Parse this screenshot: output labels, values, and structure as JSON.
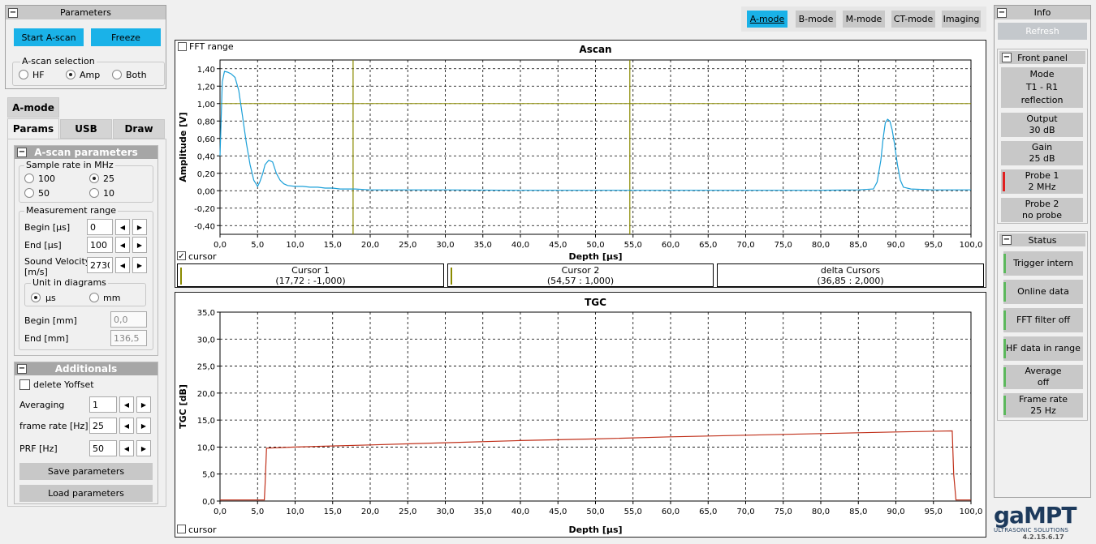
{
  "parameters": {
    "title": "Parameters",
    "start_label": "Start A-scan",
    "freeze_label": "Freeze",
    "selection_label": "A-scan selection",
    "opt_hf": "HF",
    "opt_amp": "Amp",
    "opt_both": "Both",
    "selected": "Amp"
  },
  "amode_tab": "A-mode",
  "tabs": [
    "Params",
    "USB",
    "Draw"
  ],
  "ascan_params": {
    "title": "A-scan parameters",
    "sample_rate_label": "Sample rate  in MHz",
    "rates": [
      "100",
      "25",
      "50",
      "10"
    ],
    "selected_rate": "25",
    "range_label": "Measurement range",
    "begin_label": "Begin [µs]",
    "begin_value": "0",
    "end_label": "End [µs]",
    "end_value": "100",
    "sv_label1": "Sound Velocity",
    "sv_label2": "[m/s]",
    "sv_value": "2730",
    "unit_label": "Unit in diagrams",
    "unit_us": "µs",
    "unit_mm": "mm",
    "selected_unit": "µs",
    "begin_mm_label": "Begin [mm]",
    "begin_mm_value": "0,0",
    "end_mm_label": "End [mm]",
    "end_mm_value": "136,5"
  },
  "additionals": {
    "title": "Additionals",
    "yoffset_label": "delete Yoffset",
    "averaging_label": "Averaging",
    "averaging_value": "1",
    "frame_rate_label": "frame rate [Hz]",
    "frame_rate_value": "25",
    "prf_label": "PRF [Hz]",
    "prf_value": "50",
    "save_label": "Save parameters",
    "load_label": "Load parameters"
  },
  "modes": [
    {
      "label": "A-mode",
      "active": true
    },
    {
      "label": "B-mode",
      "active": false
    },
    {
      "label": "M-mode",
      "active": false
    },
    {
      "label": "CT-mode",
      "active": false
    },
    {
      "label": "Imaging",
      "active": false
    }
  ],
  "ascan_chart": {
    "fft_label": "FFT range",
    "cursor_label": "cursor"
  },
  "cursors": {
    "c1_title": "Cursor 1",
    "c1_value": "(17,72 : -1,000)",
    "c2_title": "Cursor 2",
    "c2_value": "(54,57 : 1,000)",
    "delta_title": "delta Cursors",
    "delta_value": "(36,85 : 2,000)"
  },
  "tgc_chart": {
    "cursor_label": "cursor"
  },
  "info": {
    "title": "Info",
    "refresh_label": "Refresh",
    "front_panel_title": "Front panel",
    "mode_l1": "Mode",
    "mode_l2": "T1 - R1",
    "mode_l3": "reflection",
    "output_l1": "Output",
    "output_l2": "30 dB",
    "gain_l1": "Gain",
    "gain_l2": "25 dB",
    "probe1_l1": "Probe 1",
    "probe1_l2": "2 MHz",
    "probe2_l1": "Probe 2",
    "probe2_l2": "no probe",
    "status_title": "Status",
    "status_items": [
      "Trigger intern",
      "Online data",
      "FFT filter off",
      "HF data in range",
      "Average off",
      "Frame rate 25 Hz"
    ]
  },
  "logo": {
    "brand": "gaMPT",
    "tagline": "ULTRASONIC SOLUTIONS",
    "version": "4.2.15.6.17"
  },
  "chart_data": [
    {
      "type": "line",
      "title": "Ascan",
      "xlabel": "Depth [µs]",
      "ylabel": "Amplitude [V]",
      "xlim": [
        0,
        100
      ],
      "ylim": [
        -0.5,
        1.5
      ],
      "xticks": [
        "0,0",
        "5,0",
        "10,0",
        "15,0",
        "20,0",
        "25,0",
        "30,0",
        "35,0",
        "40,0",
        "45,0",
        "50,0",
        "55,0",
        "60,0",
        "65,0",
        "70,0",
        "75,0",
        "80,0",
        "85,0",
        "90,0",
        "95,0",
        "100,0"
      ],
      "yticks": [
        "1,40",
        "1,20",
        "1,00",
        "0,80",
        "0,60",
        "0,40",
        "0,20",
        "0,00",
        "-0,20",
        "-0,40"
      ],
      "ytick_values": [
        1.4,
        1.2,
        1.0,
        0.8,
        0.6,
        0.4,
        0.2,
        0.0,
        -0.2,
        -0.4
      ],
      "grid": true,
      "line_color": "#1a9fd8",
      "x": [
        0,
        0.3,
        0.6,
        1,
        1.5,
        2,
        2.5,
        3,
        3.5,
        4,
        4.5,
        5,
        5.3,
        5.7,
        6,
        6.5,
        7,
        7.5,
        8,
        8.5,
        9,
        10,
        11,
        12,
        13,
        14,
        15,
        16,
        18,
        20,
        25,
        30,
        40,
        50,
        60,
        70,
        80,
        85,
        87,
        87.5,
        88,
        88.3,
        88.6,
        88.9,
        89.2,
        89.5,
        89.8,
        90.2,
        90.6,
        91,
        92,
        95,
        100
      ],
      "values": [
        0.4,
        1.25,
        1.37,
        1.36,
        1.34,
        1.3,
        1.15,
        0.85,
        0.55,
        0.3,
        0.12,
        0.05,
        0.1,
        0.2,
        0.3,
        0.35,
        0.33,
        0.2,
        0.12,
        0.08,
        0.06,
        0.05,
        0.05,
        0.04,
        0.04,
        0.03,
        0.03,
        0.02,
        0.02,
        0.01,
        0.01,
        0.01,
        0.005,
        0.005,
        0.005,
        0.005,
        0.005,
        0.01,
        0.02,
        0.1,
        0.35,
        0.6,
        0.78,
        0.82,
        0.8,
        0.7,
        0.55,
        0.3,
        0.12,
        0.04,
        0.02,
        0.01,
        0.01
      ],
      "hline": {
        "y": 1.0,
        "color": "#8a8a00"
      },
      "cursor_lines": [
        17.72,
        54.57
      ]
    },
    {
      "type": "line",
      "title": "TGC",
      "xlabel": "Depth [µs]",
      "ylabel": "TGC [dB]",
      "xlim": [
        0,
        100
      ],
      "ylim": [
        0,
        35
      ],
      "xticks": [
        "0,0",
        "5,0",
        "10,0",
        "15,0",
        "20,0",
        "25,0",
        "30,0",
        "35,0",
        "40,0",
        "45,0",
        "50,0",
        "55,0",
        "60,0",
        "65,0",
        "70,0",
        "75,0",
        "80,0",
        "85,0",
        "90,0",
        "95,0",
        "100,0"
      ],
      "yticks": [
        "35,0",
        "30,0",
        "25,0",
        "20,0",
        "15,0",
        "10,0",
        "5,0",
        "0,0"
      ],
      "ytick_values": [
        35,
        30,
        25,
        20,
        15,
        10,
        5,
        0
      ],
      "grid": true,
      "line_color": "#c0301a",
      "x": [
        0,
        3,
        5.9,
        6,
        6.2,
        10,
        20,
        30,
        40,
        50,
        60,
        70,
        80,
        90,
        97.5,
        97.7,
        98,
        100
      ],
      "values": [
        0.2,
        0.2,
        0.2,
        3,
        9.8,
        10,
        10.4,
        10.8,
        11.2,
        11.5,
        11.9,
        12.2,
        12.5,
        12.8,
        13,
        5,
        0.2,
        0.2
      ]
    }
  ]
}
